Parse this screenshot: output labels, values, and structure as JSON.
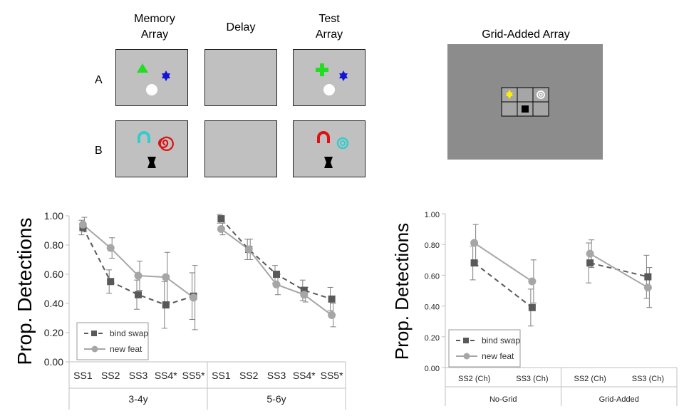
{
  "schematic": {
    "headers": {
      "memory": [
        "Memory",
        "Array"
      ],
      "delay": "Delay",
      "test": [
        "Test",
        "Array"
      ],
      "grid": "Grid-Added Array"
    },
    "rows": [
      "A",
      "B"
    ],
    "shape_colors": {
      "green": "#22dd22",
      "blue": "#1414d8",
      "white": "#ffffff",
      "cyan": "#33cccc",
      "red": "#dd1111",
      "black": "#000000",
      "yellow": "#ffee00"
    },
    "panel_color": "#c0c0c0",
    "grid_bg_color": "#8c8c8c",
    "grid_cell_color": "#a6a6a6"
  },
  "chart_data": [
    {
      "type": "line",
      "ylabel": "Prop. Detections",
      "ylim": [
        0,
        1
      ],
      "yticks": [
        "0.00",
        "0.20",
        "0.40",
        "0.60",
        "0.80",
        "1.00"
      ],
      "groups": [
        {
          "label": "3-4y",
          "categories": [
            "SS1",
            "SS2",
            "SS3",
            "SS4*",
            "SS5*"
          ]
        },
        {
          "label": "5-6y",
          "categories": [
            "SS1",
            "SS2",
            "SS3",
            "SS4*",
            "SS5*"
          ]
        }
      ],
      "series": [
        {
          "name": "bind swap",
          "style": "dashed",
          "marker": "square",
          "color": "#595959",
          "values": [
            [
              0.92,
              0.55,
              0.46,
              0.39,
              0.45
            ],
            [
              0.98,
              0.77,
              0.6,
              0.49,
              0.43
            ]
          ],
          "errors": [
            [
              0.05,
              0.08,
              0.1,
              0.16,
              0.16
            ],
            [
              0.03,
              0.07,
              0.06,
              0.07,
              0.08
            ]
          ]
        },
        {
          "name": "new feat",
          "style": "solid",
          "marker": "circle",
          "color": "#a6a6a6",
          "values": [
            [
              0.94,
              0.78,
              0.59,
              0.58,
              0.44
            ],
            [
              0.91,
              0.77,
              0.53,
              0.46,
              0.32
            ]
          ],
          "errors": [
            [
              0.05,
              0.07,
              0.1,
              0.17,
              0.22
            ],
            [
              0.04,
              0.07,
              0.07,
              0.05,
              0.08
            ]
          ]
        }
      ],
      "legend": "bottom-left",
      "grid": false
    },
    {
      "type": "line",
      "ylabel": "Prop. Detections",
      "ylim": [
        0,
        1
      ],
      "yticks": [
        "0.00",
        "0.20",
        "0.40",
        "0.60",
        "0.80",
        "1.00"
      ],
      "groups": [
        {
          "label": "No-Grid",
          "categories": [
            "SS2 (Ch)",
            "SS3 (Ch)"
          ]
        },
        {
          "label": "Grid-Added",
          "categories": [
            "SS2 (Ch)",
            "SS3 (Ch)"
          ]
        }
      ],
      "series": [
        {
          "name": "bind swap",
          "style": "dashed",
          "marker": "square",
          "color": "#595959",
          "values": [
            [
              0.68,
              0.39
            ],
            [
              0.68,
              0.59
            ]
          ],
          "errors": [
            [
              0.11,
              0.12
            ],
            [
              0.13,
              0.14
            ]
          ]
        },
        {
          "name": "new feat",
          "style": "solid",
          "marker": "circle",
          "color": "#a6a6a6",
          "values": [
            [
              0.81,
              0.56
            ],
            [
              0.74,
              0.52
            ]
          ],
          "errors": [
            [
              0.12,
              0.14
            ],
            [
              0.09,
              0.13
            ]
          ]
        }
      ],
      "legend": "bottom-left",
      "grid": false
    }
  ]
}
